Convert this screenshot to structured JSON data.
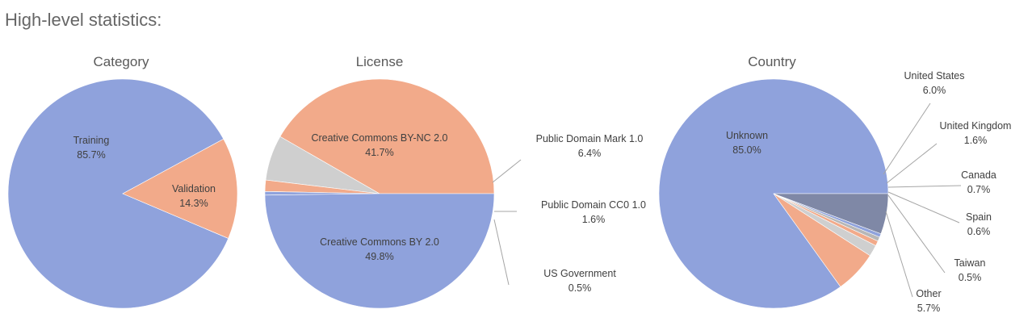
{
  "heading": "High-level statistics:",
  "colors": {
    "blue": "#8fa2dc",
    "orange": "#f2aa8a",
    "light_gray": "#cfcfcf",
    "gray": "#b7b7b7",
    "slate": "#7f88a6",
    "leader_line": "#a5a5a5",
    "text": "#404040"
  },
  "chart_data": [
    {
      "type": "pie",
      "title": "Category",
      "slices": [
        {
          "label": "Training",
          "value": 85.7,
          "value_label": "85.7%",
          "color": "#8fa2dc"
        },
        {
          "label": "Validation",
          "value": 14.3,
          "value_label": "14.3%",
          "color": "#f2aa8a"
        }
      ],
      "legend": "none"
    },
    {
      "type": "pie",
      "title": "License",
      "slices": [
        {
          "label": "Creative Commons BY-NC 2.0",
          "value": 41.7,
          "value_label": "41.7%",
          "color": "#f2aa8a"
        },
        {
          "label": "Public Domain Mark 1.0",
          "value": 6.4,
          "value_label": "6.4%",
          "color": "#cfcfcf"
        },
        {
          "label": "Public Domain CC0 1.0",
          "value": 1.6,
          "value_label": "1.6%",
          "color": "#f2aa8a"
        },
        {
          "label": "US Government",
          "value": 0.5,
          "value_label": "0.5%",
          "color": "#8fa2dc"
        },
        {
          "label": "Creative Commons BY 2.0",
          "value": 49.8,
          "value_label": "49.8%",
          "color": "#8fa2dc"
        }
      ],
      "legend": "none"
    },
    {
      "type": "pie",
      "title": "Country",
      "slices": [
        {
          "label": "Unknown",
          "value": 85.0,
          "value_label": "85.0%",
          "color": "#8fa2dc"
        },
        {
          "label": "United States",
          "value": 6.0,
          "value_label": "6.0%",
          "color": "#f2aa8a"
        },
        {
          "label": "United Kingdom",
          "value": 1.6,
          "value_label": "1.6%",
          "color": "#cfcfcf"
        },
        {
          "label": "Canada",
          "value": 0.7,
          "value_label": "0.7%",
          "color": "#f2aa8a"
        },
        {
          "label": "Spain",
          "value": 0.6,
          "value_label": "0.6%",
          "color": "#b7b7b7"
        },
        {
          "label": "Taiwan",
          "value": 0.5,
          "value_label": "0.5%",
          "color": "#8fa2dc"
        },
        {
          "label": "Other",
          "value": 5.7,
          "value_label": "5.7%",
          "color": "#7f88a6"
        }
      ],
      "legend": "none"
    }
  ]
}
